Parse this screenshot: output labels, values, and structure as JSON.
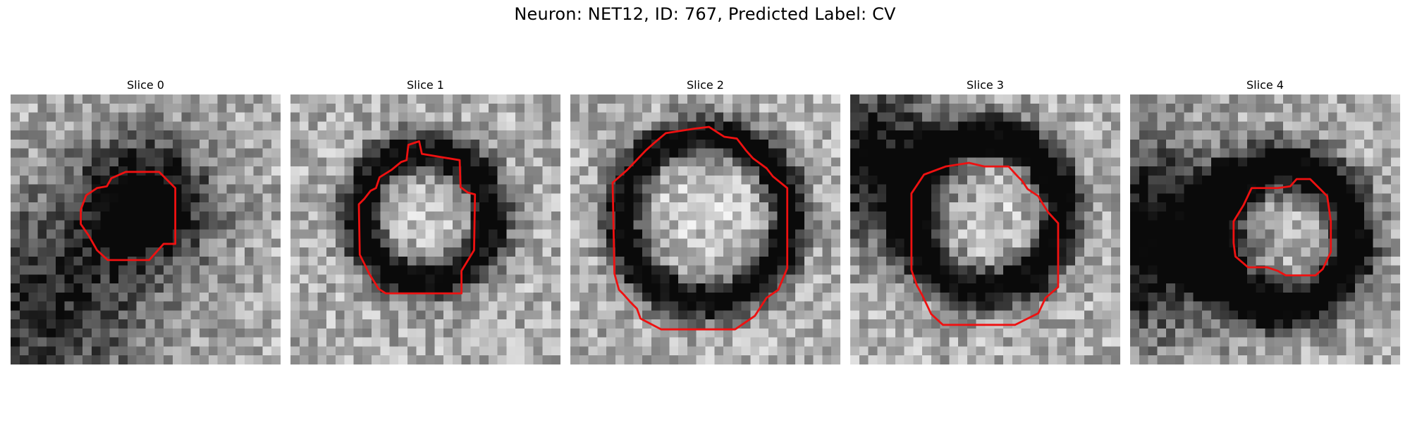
{
  "title": "Neuron: NET12, ID: 767, Predicted Label: CV",
  "colors": {
    "outline": "#ee1111",
    "background": "#ffffff"
  },
  "panels": [
    {
      "label": "Slice 0",
      "pattern": "dark-cluster",
      "seed": 11,
      "dark": [
        15,
        12,
        5,
        0.85
      ],
      "dark2": [
        4,
        23,
        8,
        0.55
      ],
      "ring": null,
      "contour": [
        [
          12.8,
          8.6
        ],
        [
          16.5,
          8.6
        ],
        [
          18.3,
          10.4
        ],
        [
          18.3,
          16.6
        ],
        [
          17,
          16.6
        ],
        [
          15.4,
          18.4
        ],
        [
          10.8,
          18.4
        ],
        [
          9.6,
          17.3
        ],
        [
          8.7,
          15.7
        ],
        [
          7.8,
          14.4
        ],
        [
          7.8,
          12.8
        ],
        [
          8.4,
          11.2
        ],
        [
          9.6,
          10.4
        ],
        [
          10.7,
          10.2
        ],
        [
          11.2,
          9.3
        ]
      ]
    },
    {
      "label": "Slice 1",
      "pattern": "ring",
      "seed": 23,
      "dark": null,
      "dark2": null,
      "ring": [
        15,
        13.5,
        7.2,
        1.7,
        0.75
      ],
      "contour": [
        [
          12.9,
          7.3
        ],
        [
          13.1,
          5.6
        ],
        [
          14.3,
          5.2
        ],
        [
          14.6,
          6.6
        ],
        [
          18.8,
          7.3
        ],
        [
          18.9,
          10.3
        ],
        [
          19.7,
          10.9
        ],
        [
          20.5,
          11.1
        ],
        [
          20.4,
          17.3
        ],
        [
          19,
          19.6
        ],
        [
          19,
          22.1
        ],
        [
          10.6,
          22.1
        ],
        [
          9.8,
          21.6
        ],
        [
          8.8,
          20
        ],
        [
          7.7,
          17.8
        ],
        [
          7.6,
          12.2
        ],
        [
          8.2,
          11.6
        ],
        [
          8.9,
          10.7
        ],
        [
          9.5,
          10.4
        ],
        [
          9.9,
          9.2
        ],
        [
          11.2,
          8.4
        ],
        [
          12.3,
          7.5
        ]
      ]
    },
    {
      "label": "Slice 2",
      "pattern": "ring",
      "seed": 37,
      "dark": null,
      "dark2": null,
      "ring": [
        15,
        13.7,
        9.2,
        1.6,
        0.8
      ],
      "contour": [
        [
          10.6,
          4.3
        ],
        [
          13.8,
          3.8
        ],
        [
          15.4,
          3.6
        ],
        [
          17.1,
          4.7
        ],
        [
          18.5,
          4.9
        ],
        [
          19.5,
          6.2
        ],
        [
          20.3,
          7.1
        ],
        [
          21.8,
          8.2
        ],
        [
          22.5,
          9.1
        ],
        [
          24.1,
          10.4
        ],
        [
          24.1,
          19.3
        ],
        [
          23.1,
          21.7
        ],
        [
          21.8,
          22.6
        ],
        [
          20.5,
          24.6
        ],
        [
          18.3,
          26.1
        ],
        [
          10.1,
          26.1
        ],
        [
          7.8,
          24.9
        ],
        [
          7.4,
          23.8
        ],
        [
          6.7,
          23.1
        ],
        [
          5.9,
          22.2
        ],
        [
          5.4,
          21.7
        ],
        [
          4.9,
          19.9
        ],
        [
          4.7,
          9.8
        ],
        [
          6.3,
          8.4
        ],
        [
          8.4,
          6.2
        ],
        [
          9.3,
          5.4
        ]
      ]
    },
    {
      "label": "Slice 3",
      "pattern": "ring-oval",
      "seed": 41,
      "dark": [
        2,
        7,
        6,
        0.7
      ],
      "dark2": null,
      "ring": [
        15,
        13.2,
        8.4,
        1.8,
        0.8
      ],
      "contour": [
        [
          10.6,
          8.0
        ],
        [
          13.2,
          7.6
        ],
        [
          14.9,
          8.0
        ],
        [
          17.6,
          8.0
        ],
        [
          18.6,
          9.1
        ],
        [
          19.1,
          9.6
        ],
        [
          19.7,
          10.5
        ],
        [
          20.9,
          11.3
        ],
        [
          21.3,
          12.0
        ],
        [
          22.0,
          13.1
        ],
        [
          23.1,
          14.3
        ],
        [
          23.1,
          21.4
        ],
        [
          21.7,
          22.6
        ],
        [
          20.9,
          24.3
        ],
        [
          18.3,
          25.6
        ],
        [
          10.3,
          25.6
        ],
        [
          9.0,
          24.4
        ],
        [
          8.0,
          22.3
        ],
        [
          7.4,
          21.2
        ],
        [
          6.8,
          19.5
        ],
        [
          6.8,
          11.0
        ],
        [
          8.2,
          8.9
        ]
      ]
    },
    {
      "label": "Slice 4",
      "pattern": "dark-ring",
      "seed": 53,
      "dark": [
        2,
        16,
        7,
        0.8
      ],
      "dark2": null,
      "ring": [
        17,
        15.8,
        7.8,
        2.0,
        0.85
      ],
      "contour": [
        [
          13.5,
          10.4
        ],
        [
          16.4,
          10.4
        ],
        [
          17.8,
          10.2
        ],
        [
          18.5,
          9.4
        ],
        [
          20,
          9.4
        ],
        [
          21.1,
          10.5
        ],
        [
          21.9,
          11.3
        ],
        [
          22.3,
          14.1
        ],
        [
          22.3,
          17.5
        ],
        [
          21.4,
          19.4
        ],
        [
          20.6,
          20.1
        ],
        [
          17.3,
          20.1
        ],
        [
          16.4,
          19.6
        ],
        [
          15.2,
          19.2
        ],
        [
          13.1,
          19.2
        ],
        [
          11.7,
          18
        ],
        [
          11.5,
          16.5
        ],
        [
          11.5,
          14.1
        ],
        [
          12.6,
          12.3
        ]
      ]
    }
  ]
}
